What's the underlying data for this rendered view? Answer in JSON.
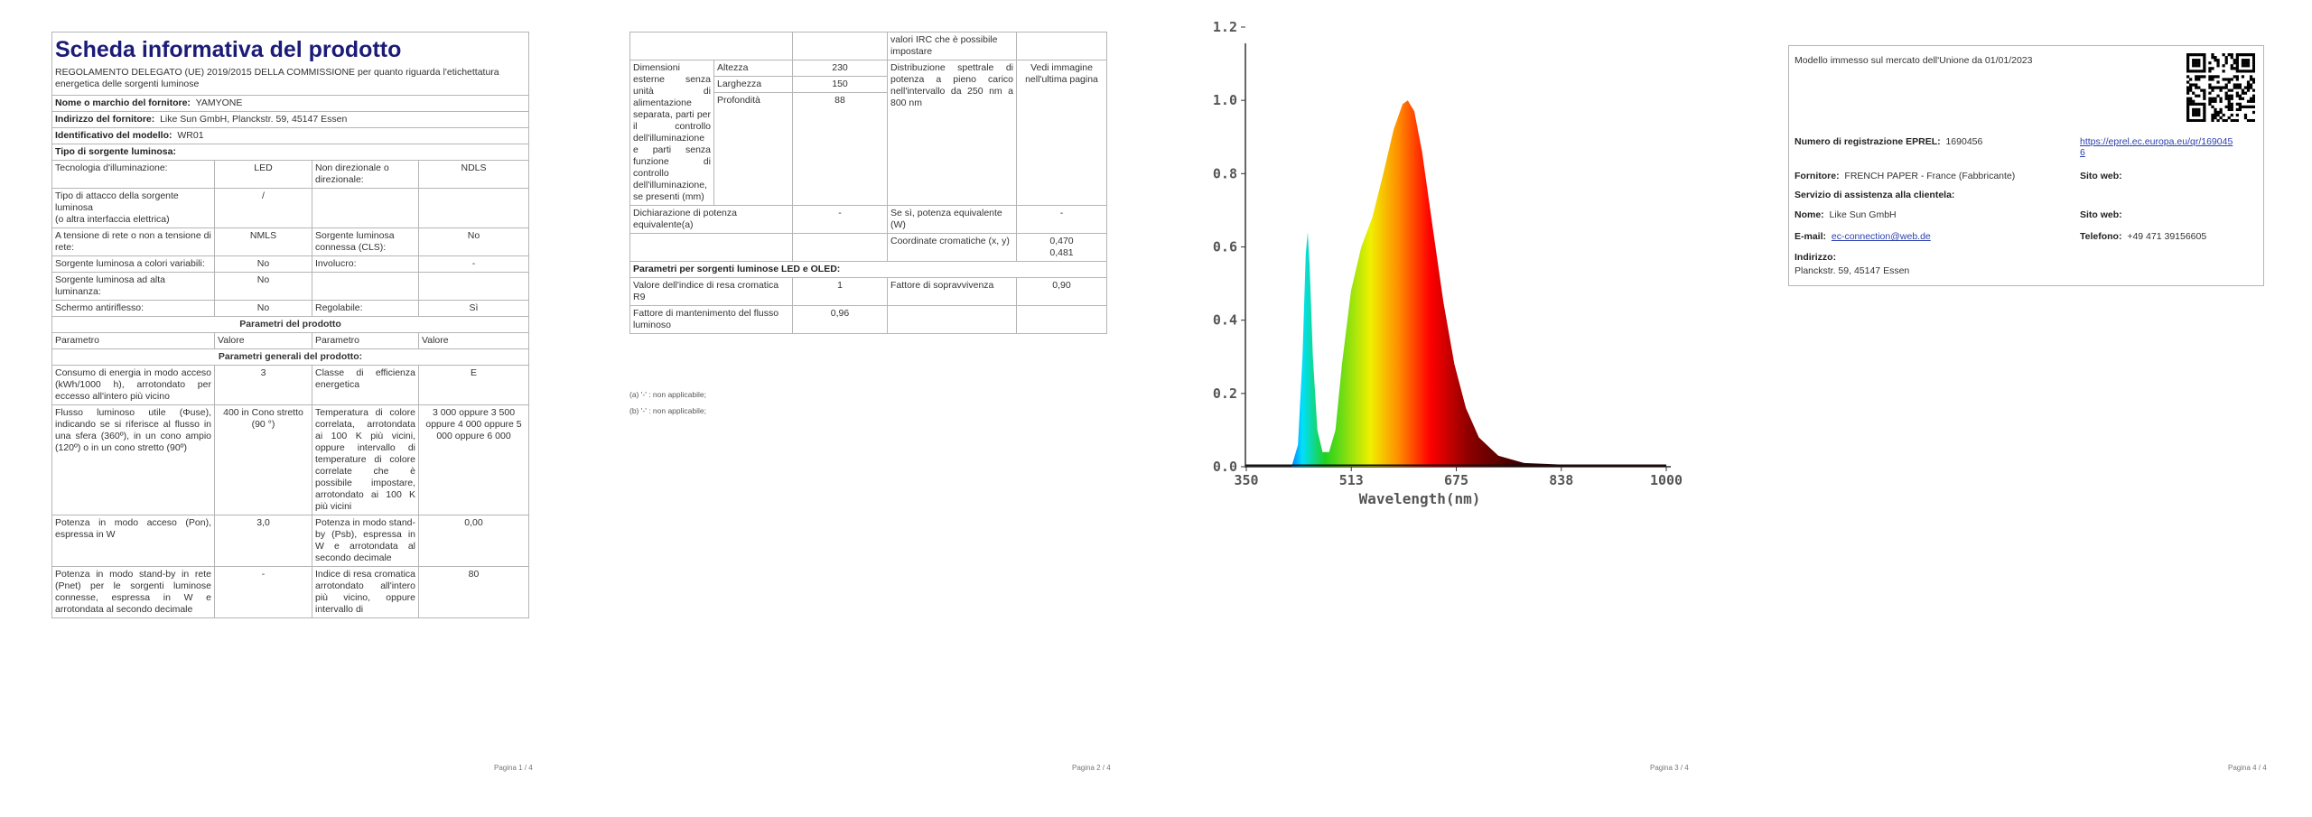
{
  "page1": {
    "title": "Scheda informativa del prodotto",
    "regulation": "REGOLAMENTO DELEGATO (UE) 2019/2015 DELLA COMMISSIONE per quanto riguarda l'etichettatura energetica delle sorgenti luminose",
    "supplier_name": {
      "label": "Nome o marchio del fornitore:",
      "value": "YAMYONE"
    },
    "supplier_address": {
      "label": "Indirizzo del fornitore:",
      "value": "Like Sun GmbH, Planckstr. 59, 45147 Essen"
    },
    "model_id": {
      "label": "Identificativo del modello:",
      "value": "WR01"
    },
    "light_source_type": "Tipo di sorgente luminosa:",
    "type_rows": [
      [
        "Tecnologia d'illuminazione:",
        "LED",
        "Non direzionale o direzionale:",
        "NDLS"
      ],
      [
        "Tipo di attacco della sorgente luminosa\n(o altra interfaccia elettrica)",
        "/"
      ],
      [
        "A tensione di rete o non a tensione di rete:",
        "NMLS",
        "Sorgente luminosa connessa (CLS):",
        "No"
      ],
      [
        "Sorgente luminosa a colori variabili:",
        "No",
        "Involucro:",
        "-"
      ],
      [
        "Sorgente luminosa ad alta luminanza:",
        "No"
      ],
      [
        "Schermo antiriflesso:",
        "No",
        "Regolabile:",
        "Sì"
      ]
    ],
    "product_params": "Parametri del prodotto",
    "header": [
      "Parametro",
      "Valore",
      "Parametro",
      "Valore"
    ],
    "general_params": "Parametri generali del prodotto:",
    "param_rows": [
      [
        "Consumo di energia in modo acceso (kWh/1000 h), arrotondato per eccesso all'intero più vicino",
        "3",
        "Classe di efficienza energetica",
        "E"
      ],
      [
        "Flusso luminoso utile (Φuse), indicando se si riferisce al flusso in una sfera (360º), in un cono ampio (120º) o in un cono stretto (90º)",
        "400 in Cono stretto (90 °)",
        "Temperatura di colore correlata, arrotondata ai 100 K più vicini, oppure intervallo di temperature di colore correlate che è possibile impostare, arrotondato ai 100 K più vicini",
        "3 000 oppure 3 500 oppure 4 000 oppure 5 000 oppure 6 000"
      ],
      [
        "Potenza in modo acceso (Pon), espressa in W",
        "3,0",
        "Potenza in modo stand-by (Psb), espressa in W e arrotondata al secondo decimale",
        "0,00"
      ],
      [
        "Potenza in modo stand-by in rete (Pnet) per le sorgenti luminose connesse, espressa in W e arrotondata al secondo decimale",
        "-",
        "Indice di resa cromatica arrotondato all'intero più vicino, oppure intervallo di",
        "80"
      ]
    ],
    "footer": "Pagina 1 / 4"
  },
  "page2": {
    "continued_row": "valori IRC che è possibile impostare",
    "dimensions": {
      "label": "Dimensioni esterne senza unità di alimentazione separata, parti per il controllo dell'illuminazione e parti senza funzione di controllo dell'illuminazione, se presenti (mm)",
      "rows": [
        [
          "Altezza",
          "230"
        ],
        [
          "Larghezza",
          "150"
        ],
        [
          "Profondità",
          "88"
        ]
      ],
      "spectral_label": "Distribuzione spettrale di potenza a pieno carico nell'intervallo da 250 nm a 800 nm",
      "spectral_value": "Vedi immagine nell'ultima pagina"
    },
    "equivalent_power": [
      "Dichiarazione di potenza equivalente(a)",
      "-",
      "Se sì, potenza equivalente (W)",
      "-"
    ],
    "chromaticity": {
      "label": "Coordinate cromatiche (x, y)",
      "x": "0,470",
      "y": "0,481"
    },
    "led_params": "Parametri per sorgenti luminose LED e OLED:",
    "led_rows": [
      [
        "Valore dell'indice di resa cromatica R9",
        "1",
        "Fattore di sopravvivenza",
        "0,90"
      ],
      [
        "Fattore di mantenimento del flusso luminoso",
        "0,96"
      ]
    ],
    "footnotes": [
      "(a) '-' : non applicabile;",
      "(b) '-' : non applicabile;"
    ],
    "footer": "Pagina 2 / 4"
  },
  "page3": {
    "spectrum": {
      "yticks": [
        "1.2",
        "1.0",
        "0.8",
        "0.6",
        "0.4",
        "0.2",
        "0.0"
      ],
      "xticks": [
        "350",
        "513",
        "675",
        "838",
        "1000"
      ],
      "xlabel": "Wavelength(nm)"
    },
    "footer": "Pagina 3 / 4"
  },
  "page4": {
    "market_date": "Modello immesso sul mercato dell'Unione da 01/01/2023",
    "eprel": {
      "label": "Numero di registrazione EPREL:",
      "value": "1690456",
      "link": "https://eprel.ec.europa.eu/qr/1690456"
    },
    "supplier": {
      "label": "Fornitore:",
      "value": "FRENCH PAPER - France (Fabbricante)",
      "website": "Sito web:"
    },
    "customer_service": "Servizio di assistenza alla clientela:",
    "name": {
      "label": "Nome:",
      "value": "Like Sun GmbH",
      "website": "Sito web:"
    },
    "email": {
      "label": "E-mail:",
      "value": "ec-connection@web.de",
      "phone_label": "Telefono:",
      "phone": "+49 471 39156605"
    },
    "address": {
      "label": "Indirizzo:",
      "value": "Planckstr. 59, 45147 Essen"
    },
    "footer": "Pagina 4 / 4"
  }
}
